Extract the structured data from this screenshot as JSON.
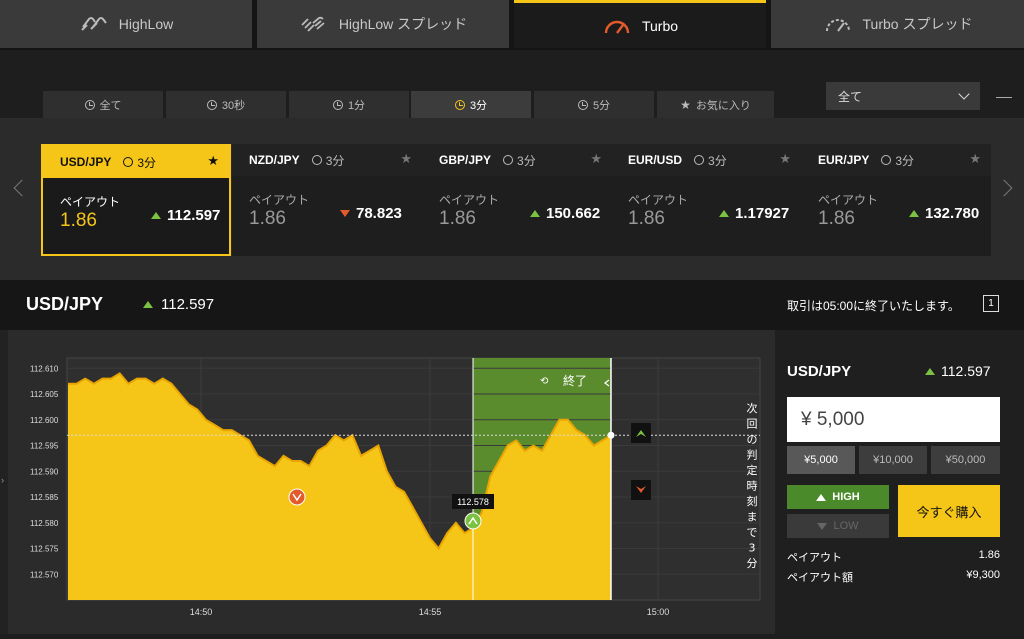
{
  "product_tabs": [
    {
      "label": "HighLow",
      "icon": "highlow-icon",
      "active": false
    },
    {
      "label": "HighLow スプレッド",
      "icon": "highlow-spread-icon",
      "active": false
    },
    {
      "label": "Turbo",
      "icon": "speedometer-icon",
      "active": true
    },
    {
      "label": "Turbo スプレッド",
      "icon": "speedometer-outline-icon",
      "active": false
    }
  ],
  "time_filters": [
    {
      "label": "全て",
      "active": false
    },
    {
      "label": "30秒",
      "active": false
    },
    {
      "label": "1分",
      "active": false
    },
    {
      "label": "3分",
      "active": true
    },
    {
      "label": "5分",
      "active": false
    },
    {
      "label": "お気に入り",
      "active": false
    }
  ],
  "asset_filter": {
    "selected": "全て"
  },
  "assets": [
    {
      "pair": "USD/JPY",
      "duration": "3分",
      "payout_label": "ペイアウト",
      "payout": "1.86",
      "rate": "112.597",
      "dir": "up",
      "selected": true
    },
    {
      "pair": "NZD/JPY",
      "duration": "3分",
      "payout_label": "ペイアウト",
      "payout": "1.86",
      "rate": "78.823",
      "dir": "down",
      "selected": false
    },
    {
      "pair": "GBP/JPY",
      "duration": "3分",
      "payout_label": "ペイアウト",
      "payout": "1.86",
      "rate": "150.662",
      "dir": "up",
      "selected": false
    },
    {
      "pair": "EUR/USD",
      "duration": "3分",
      "payout_label": "ペイアウト",
      "payout": "1.86",
      "rate": "1.17927",
      "dir": "up",
      "selected": false
    },
    {
      "pair": "EUR/JPY",
      "duration": "3分",
      "payout_label": "ペイアウト",
      "payout": "1.86",
      "rate": "132.780",
      "dir": "up",
      "selected": false
    }
  ],
  "header": {
    "symbol": "USD/JPY",
    "rate": "112.597",
    "message": "取引は05:00に終了いたします。",
    "icon_label": "1"
  },
  "chart": {
    "y_ticks": [
      "112.610",
      "112.605",
      "112.600",
      "112.595",
      "112.590",
      "112.585",
      "112.580",
      "112.575",
      "112.570"
    ],
    "x_ticks": [
      "14:50",
      "14:55",
      "15:00"
    ],
    "end_label": "終了",
    "countdown_label": "次回の判定時刻まで3分",
    "entry_marker": "112.578",
    "current_rate": 112.597
  },
  "chart_data": {
    "type": "area",
    "ylim": [
      112.565,
      112.612
    ],
    "x_ticks": [
      "14:50",
      "14:55",
      "15:00"
    ],
    "series": [
      {
        "values": [
          112.607,
          112.607,
          112.608,
          112.607,
          112.608,
          112.608,
          112.609,
          112.607,
          112.608,
          112.608,
          112.607,
          112.608,
          112.607,
          112.605,
          112.603,
          112.602,
          112.6,
          112.599,
          112.598,
          112.598,
          112.597,
          112.596,
          112.593,
          112.592,
          112.591,
          112.593,
          112.592,
          112.592,
          112.591,
          112.594,
          112.595,
          112.597,
          112.596,
          112.597,
          112.593,
          112.594,
          112.595,
          112.59,
          112.587,
          112.586,
          112.583,
          112.58,
          112.577,
          112.575,
          112.578,
          112.58,
          112.578,
          112.579,
          112.582,
          112.589,
          112.592,
          112.595,
          112.596,
          112.594,
          112.595,
          112.594,
          112.597,
          112.6,
          112.6,
          112.598,
          112.597,
          112.595,
          112.596,
          112.597
        ]
      }
    ]
  },
  "panel": {
    "symbol": "USD/JPY",
    "rate": "112.597",
    "amount": "¥ 5,000",
    "quick_amounts": [
      {
        "label": "¥5,000",
        "on": true
      },
      {
        "label": "¥10,000",
        "on": false
      },
      {
        "label": "¥50,000",
        "on": false
      }
    ],
    "high_label": "HIGH",
    "low_label": "LOW",
    "buy_label": "今すぐ購入",
    "payout_label": "ペイアウト",
    "payout_value": "1.86",
    "payout_amount_label": "ペイアウト額",
    "payout_amount_value": "¥9,300"
  },
  "colors": {
    "accent": "#f5c518",
    "up": "#7cc242",
    "down": "#e35a2b",
    "expiry_zone": "#5a8c2e"
  }
}
